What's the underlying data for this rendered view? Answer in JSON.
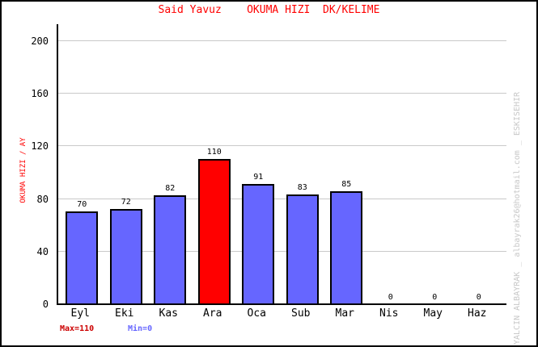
{
  "title": "Said Yavuz    OKUMA HIZI  DK/KELIME",
  "watermark": "YALCIN ALBAYRAK _ albayrak26@hotmail.com _ ESKISEHIR",
  "footer": {
    "max_label": "Max=110",
    "min_label": "Min=0"
  },
  "colors": {
    "title_text": "#ff0000",
    "ylabel_text": "#ff0000",
    "bar_default": "#6666ff",
    "bar_highlight": "#ff0000",
    "bar_border": "#000000",
    "gridline": "#c9c9c9",
    "axis": "#000000",
    "watermark_text": "#c8c8c8",
    "max_label_text": "#cc0000",
    "min_label_text": "#6666ff",
    "background": "#ffffff"
  },
  "chart_data": {
    "type": "bar",
    "title": "Said Yavuz    OKUMA HIZI  DK/KELIME",
    "categories": [
      "Eyl",
      "Eki",
      "Kas",
      "Ara",
      "Oca",
      "Sub",
      "Mar",
      "Nis",
      "May",
      "Haz"
    ],
    "values": [
      70,
      72,
      82,
      110,
      91,
      83,
      85,
      0,
      0,
      0
    ],
    "bar_colors": [
      "#6666ff",
      "#6666ff",
      "#6666ff",
      "#ff0000",
      "#6666ff",
      "#6666ff",
      "#6666ff",
      "#6666ff",
      "#6666ff",
      "#6666ff"
    ],
    "highlight_index": 3,
    "highlight_reason": "maximum value",
    "xlabel": "",
    "ylabel": "OKUMA HIZI / AY",
    "yticks": [
      0,
      40,
      80,
      120,
      160,
      200
    ],
    "ylim": [
      0,
      213
    ],
    "grid": true,
    "legend": "none",
    "data_labels": true,
    "max": 110,
    "min": 0
  }
}
